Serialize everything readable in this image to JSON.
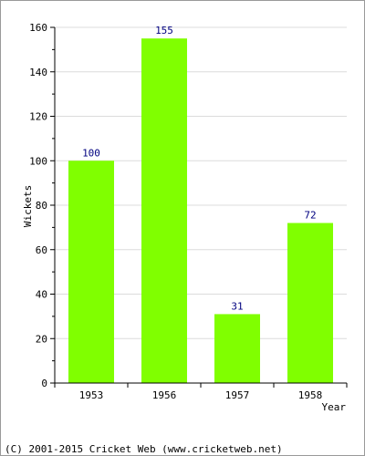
{
  "chart_data": {
    "type": "bar",
    "categories": [
      "1953",
      "1956",
      "1957",
      "1958"
    ],
    "values": [
      100,
      155,
      31,
      72
    ],
    "data_labels": [
      "100",
      "155",
      "31",
      "72"
    ],
    "xlabel": "Year",
    "ylabel": "Wickets",
    "ylim": [
      0,
      160
    ],
    "yticks": [
      "0",
      "20",
      "40",
      "60",
      "80",
      "100",
      "120",
      "140",
      "160"
    ],
    "grid": true,
    "bar_color": "#80ff00",
    "label_color": "#000080"
  },
  "footer": {
    "credit": "(C) 2001-2015 Cricket Web (www.cricketweb.net)"
  }
}
